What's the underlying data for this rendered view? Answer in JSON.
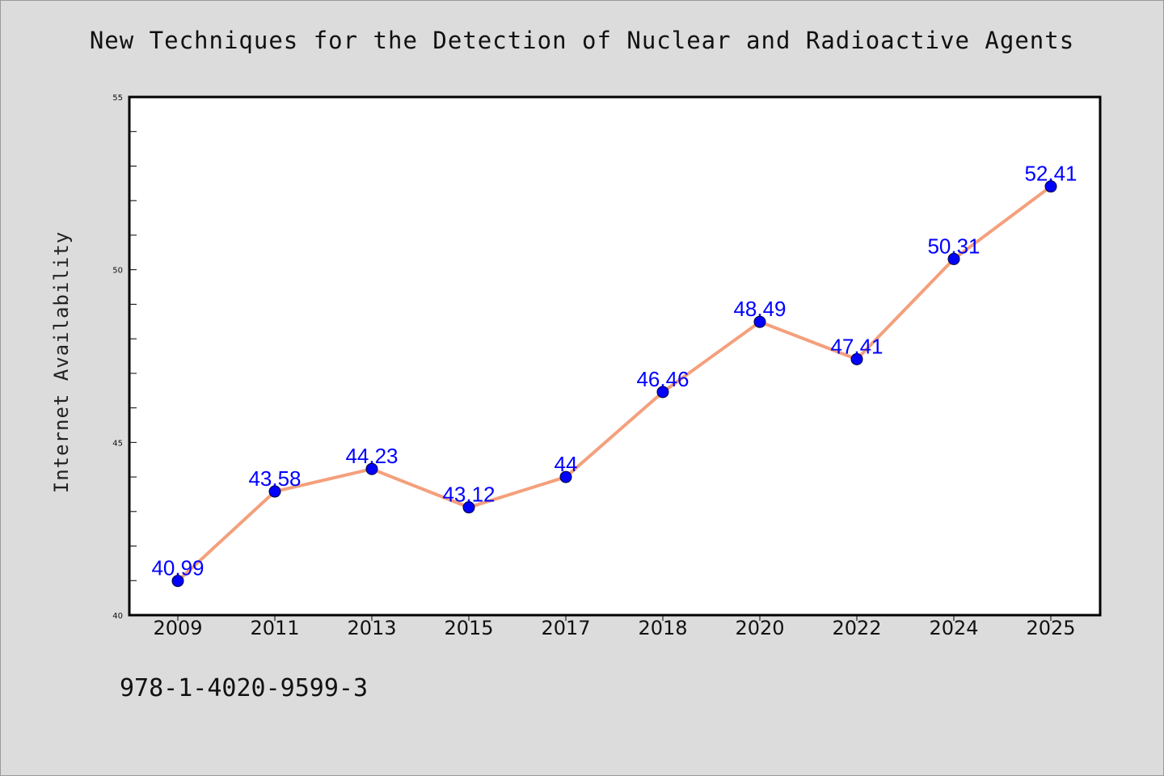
{
  "chart_data": {
    "type": "line",
    "title": "New Techniques for the Detection of Nuclear and Radioactive Agents",
    "xlabel": "",
    "ylabel": "Internet Availability",
    "categories": [
      "2009",
      "2011",
      "2013",
      "2015",
      "2017",
      "2018",
      "2020",
      "2022",
      "2024",
      "2025"
    ],
    "series": [
      {
        "values": [
          40.99,
          43.58,
          44.23,
          43.12,
          44,
          46.46,
          48.49,
          47.41,
          50.31,
          52.41
        ],
        "labels": [
          "40.99",
          "43.58",
          "44.23",
          "43.12",
          "44",
          "46.46",
          "48.49",
          "47.41",
          "50.31",
          "52.41"
        ]
      }
    ],
    "ylim": [
      40,
      55
    ],
    "yticks": [
      40,
      45,
      50,
      55
    ],
    "yminor_step": 1,
    "grid": false,
    "line_color": "#f4a07c",
    "marker_color": "#0000ff",
    "label_color": "#0000ff"
  },
  "footer_text": "978-1-4020-9599-3",
  "colors": {
    "background": "#dcdcdc",
    "plot_background": "#ffffff",
    "axis": "#000000"
  }
}
